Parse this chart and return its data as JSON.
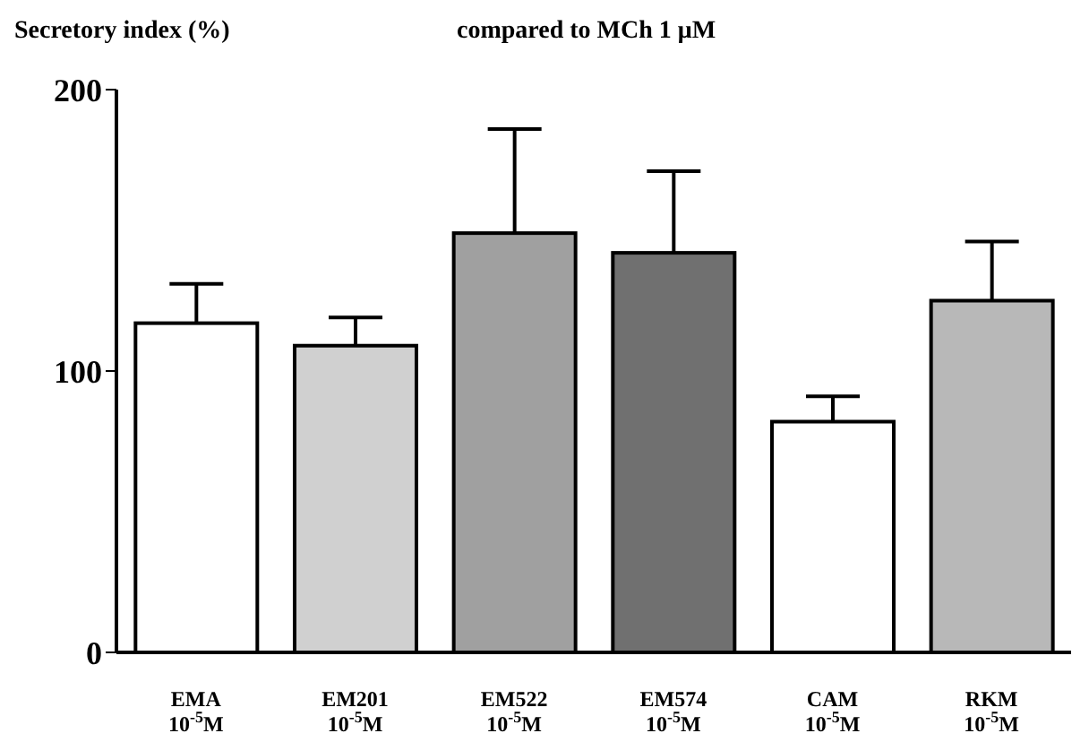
{
  "chart_data": {
    "type": "bar",
    "title": "compared to MCh 1 μM",
    "ylabel": "Secretory index (%)",
    "categories": [
      "EMA 10$^{-5}$M",
      "EM201 10$^{-5}$M",
      "EM522 10$^{-5}$M",
      "EM574 10$^{-5}$M",
      "CAM 10$^{-5}$M",
      "RKM 10$^{-5}$M"
    ],
    "values": [
      117,
      109,
      149,
      142,
      82,
      125
    ],
    "errors": [
      14,
      10,
      37,
      29,
      9,
      21
    ],
    "colors": [
      "#ffffff",
      "#d0d0d0",
      "#a0a0a0",
      "#707070",
      "#ffffff",
      "#b8b8b8"
    ],
    "ylim": [
      0,
      200
    ],
    "yticks": [
      0,
      100,
      200
    ],
    "grid": false,
    "legend": false
  }
}
